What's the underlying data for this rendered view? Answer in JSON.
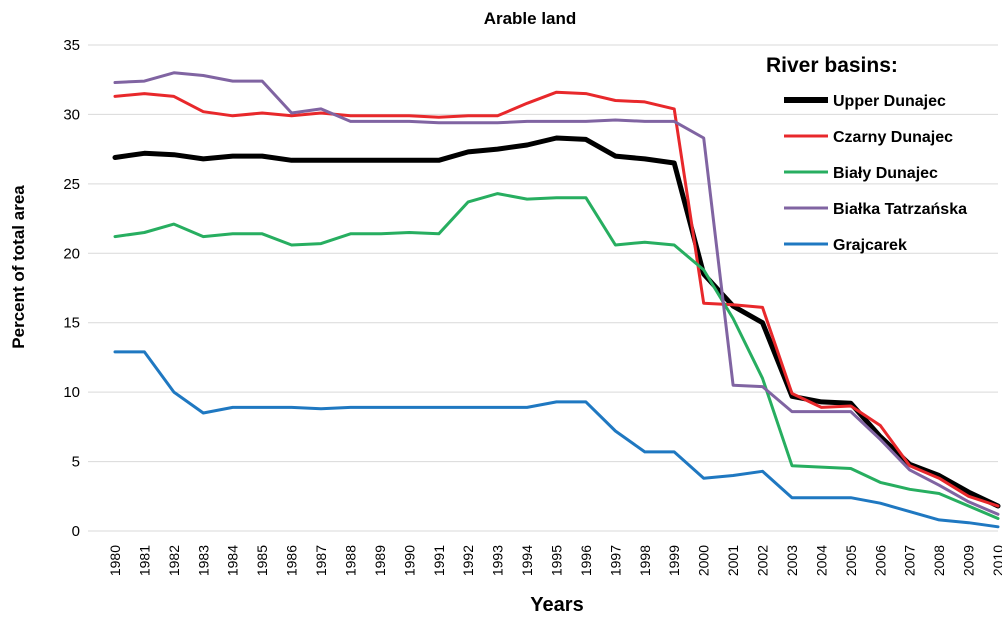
{
  "chart_data": {
    "type": "line",
    "title": "Arable land",
    "xlabel": "Years",
    "ylabel": "Percent of total area",
    "ylim": [
      0,
      35
    ],
    "yticks": [
      0,
      5,
      10,
      15,
      20,
      25,
      30,
      35
    ],
    "grid": true,
    "legend_title": "River basins:",
    "legend_position": "top-right",
    "x": [
      "1980",
      "1981",
      "1982",
      "1983",
      "1984",
      "1985",
      "1986",
      "1987",
      "1988",
      "1989",
      "1990",
      "1991",
      "1992",
      "1993",
      "1994",
      "1995",
      "1996",
      "1997",
      "1998",
      "1999",
      "2000",
      "2001",
      "2002",
      "2003",
      "2004",
      "2005",
      "2006",
      "2007",
      "2008",
      "2009",
      "2010"
    ],
    "series": [
      {
        "name": "Upper Dunajec",
        "color": "#000000",
        "values": [
          26.9,
          27.2,
          27.1,
          26.8,
          27.0,
          27.0,
          26.7,
          26.7,
          26.7,
          26.7,
          26.7,
          26.7,
          27.3,
          27.5,
          27.8,
          28.3,
          28.2,
          27.0,
          26.8,
          26.5,
          18.5,
          16.2,
          15.0,
          9.7,
          9.3,
          9.2,
          6.8,
          4.8,
          4.0,
          2.8,
          1.8
        ]
      },
      {
        "name": "Czarny Dunajec",
        "color": "#e8282b",
        "values": [
          31.3,
          31.5,
          31.3,
          30.2,
          29.9,
          30.1,
          29.9,
          30.1,
          29.9,
          29.9,
          29.9,
          29.8,
          29.9,
          29.9,
          30.8,
          31.6,
          31.5,
          31.0,
          30.9,
          30.4,
          16.4,
          16.3,
          16.1,
          9.9,
          8.9,
          9.0,
          7.6,
          4.7,
          3.8,
          2.5,
          1.8
        ]
      },
      {
        "name": "Biały Dunajec",
        "color": "#27ae60",
        "values": [
          21.2,
          21.5,
          22.1,
          21.2,
          21.4,
          21.4,
          20.6,
          20.7,
          21.4,
          21.4,
          21.5,
          21.4,
          23.7,
          24.3,
          23.9,
          24.0,
          24.0,
          20.6,
          20.8,
          20.6,
          18.8,
          15.3,
          11.0,
          4.7,
          4.6,
          4.5,
          3.5,
          3.0,
          2.7,
          1.8,
          0.9
        ]
      },
      {
        "name": "Białka Tatrzańska",
        "color": "#8064a2",
        "values": [
          32.3,
          32.4,
          33.0,
          32.8,
          32.4,
          32.4,
          30.1,
          30.4,
          29.5,
          29.5,
          29.5,
          29.4,
          29.4,
          29.4,
          29.5,
          29.5,
          29.5,
          29.6,
          29.5,
          29.5,
          28.3,
          10.5,
          10.4,
          8.6,
          8.6,
          8.6,
          6.6,
          4.4,
          3.3,
          2.1,
          1.2
        ]
      },
      {
        "name": "Grajcarek",
        "color": "#1f78c1",
        "values": [
          12.9,
          12.9,
          10.0,
          8.5,
          8.9,
          8.9,
          8.9,
          8.8,
          8.9,
          8.9,
          8.9,
          8.9,
          8.9,
          8.9,
          8.9,
          9.3,
          9.3,
          7.2,
          5.7,
          5.7,
          3.8,
          4.0,
          4.3,
          2.4,
          2.4,
          2.4,
          2.0,
          1.4,
          0.8,
          0.6,
          0.3
        ]
      }
    ]
  }
}
